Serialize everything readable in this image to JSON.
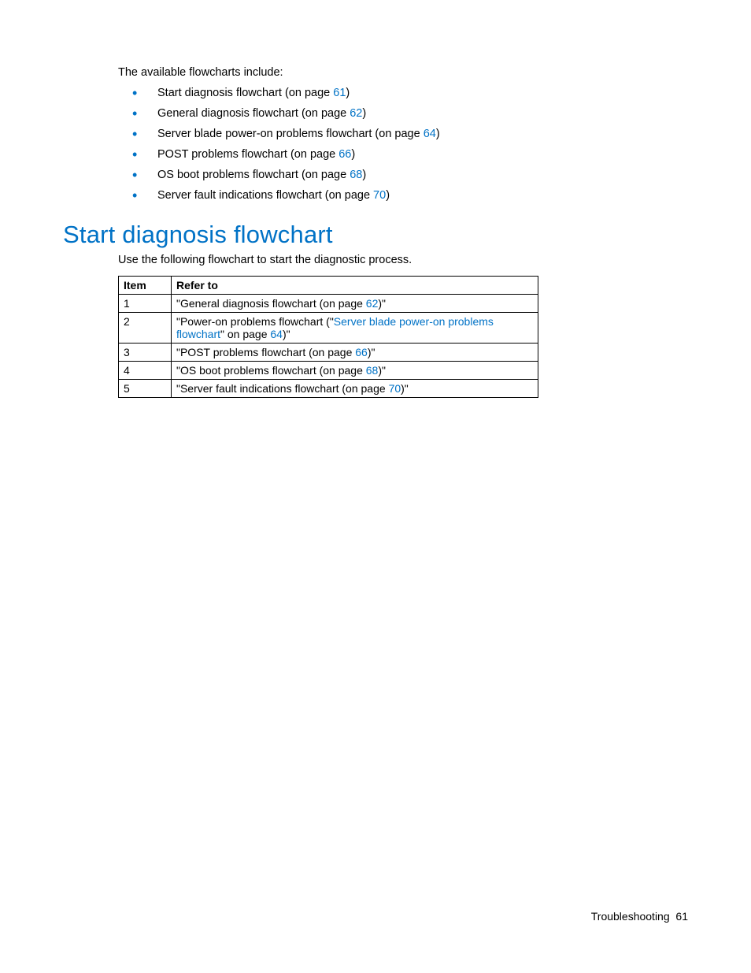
{
  "intro_text": "The available flowcharts include:",
  "bullets": [
    {
      "prefix": "Start diagnosis flowchart (on page ",
      "page": "61",
      "suffix": ")"
    },
    {
      "prefix": "General diagnosis flowchart (on page ",
      "page": "62",
      "suffix": ")"
    },
    {
      "prefix": "Server blade power-on problems flowchart (on page ",
      "page": "64",
      "suffix": ")"
    },
    {
      "prefix": "POST problems flowchart (on page ",
      "page": "66",
      "suffix": ")"
    },
    {
      "prefix": "OS boot problems flowchart (on page ",
      "page": "68",
      "suffix": ")"
    },
    {
      "prefix": "Server fault indications flowchart (on page ",
      "page": "70",
      "suffix": ")"
    }
  ],
  "section_title": "Start diagnosis flowchart",
  "section_intro": "Use the following flowchart to start the diagnostic process.",
  "table": {
    "headers": {
      "item": "Item",
      "refer": "Refer to"
    },
    "rows": [
      {
        "item": "1",
        "segments": [
          {
            "text": "\"General diagnosis flowchart (on page ",
            "link": false
          },
          {
            "text": "62",
            "link": true
          },
          {
            "text": ")\"",
            "link": false
          }
        ]
      },
      {
        "item": "2",
        "segments": [
          {
            "text": "\"Power-on problems flowchart (\"",
            "link": false
          },
          {
            "text": "Server blade power-on problems flowchart",
            "link": true
          },
          {
            "text": "\" on page ",
            "link": false
          },
          {
            "text": "64",
            "link": true
          },
          {
            "text": ")\"",
            "link": false
          }
        ]
      },
      {
        "item": "3",
        "segments": [
          {
            "text": "\"POST problems flowchart (on page ",
            "link": false
          },
          {
            "text": "66",
            "link": true
          },
          {
            "text": ")\"",
            "link": false
          }
        ]
      },
      {
        "item": "4",
        "segments": [
          {
            "text": "\"OS boot problems flowchart (on page ",
            "link": false
          },
          {
            "text": "68",
            "link": true
          },
          {
            "text": ")\"",
            "link": false
          }
        ]
      },
      {
        "item": "5",
        "segments": [
          {
            "text": "\"Server fault indications flowchart (on page ",
            "link": false
          },
          {
            "text": "70",
            "link": true
          },
          {
            "text": ")\"",
            "link": false
          }
        ]
      }
    ]
  },
  "footer": {
    "label": "Troubleshooting",
    "page": "61"
  },
  "colors": {
    "link": "#0072c6",
    "text": "#000000",
    "background": "#ffffff",
    "border": "#000000"
  }
}
